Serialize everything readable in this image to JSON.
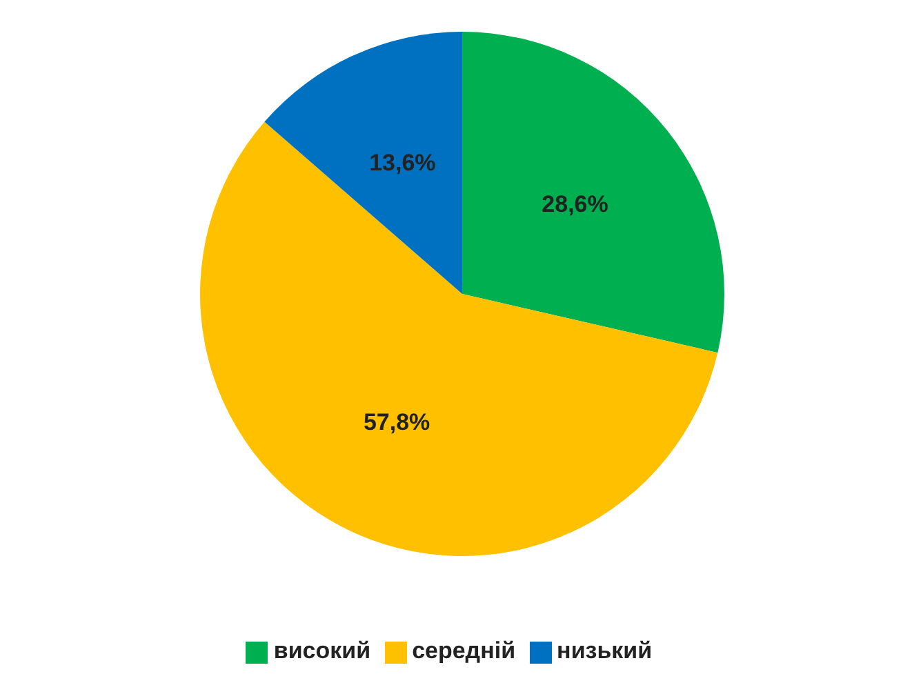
{
  "chart_data": {
    "type": "pie",
    "categories": [
      "високий",
      "середній",
      "низький"
    ],
    "values": [
      28.6,
      57.8,
      13.6
    ],
    "colors": [
      "#00b050",
      "#ffc000",
      "#0070c0"
    ],
    "value_labels": [
      "28,6%",
      "57,8%",
      "13,6%"
    ],
    "legend": "bottom"
  }
}
